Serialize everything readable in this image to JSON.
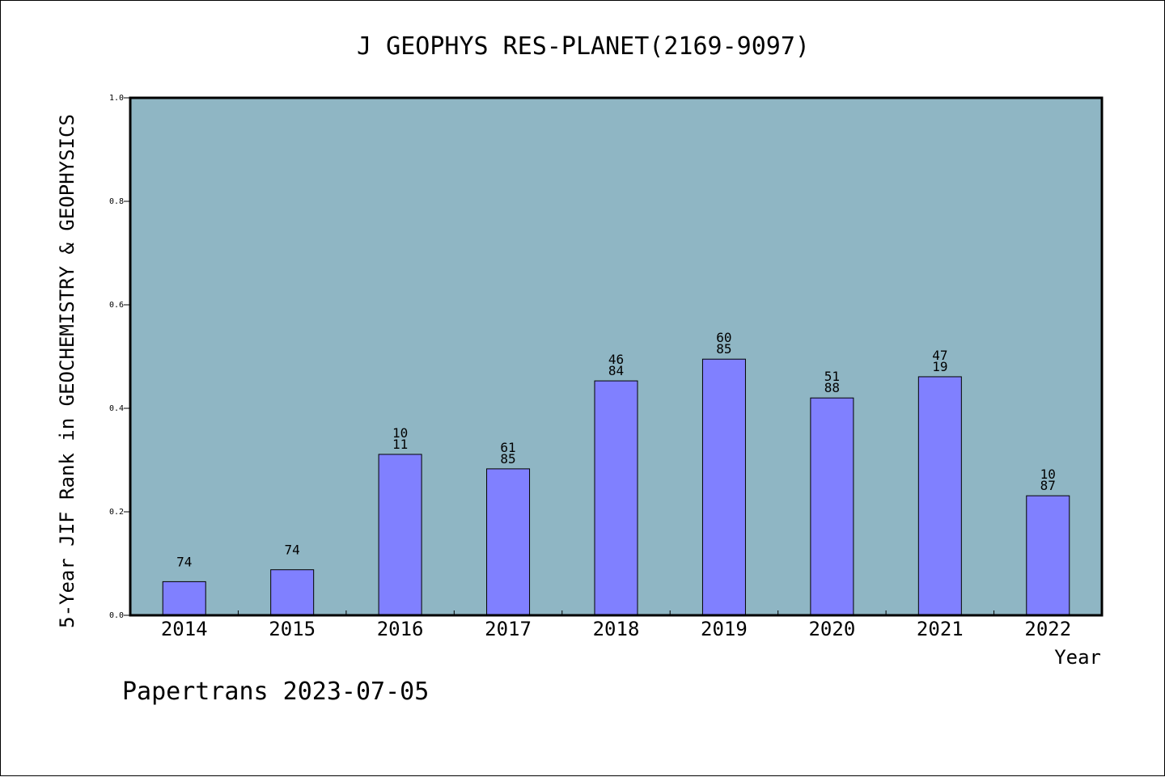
{
  "chart_data": {
    "type": "bar",
    "title": "J GEOPHYS RES-PLANET(2169-9097)",
    "xlabel": "Year",
    "ylabel": "5-Year JIF Rank in GEOCHEMISTRY & GEOPHYSICS",
    "categories": [
      "2014",
      "2015",
      "2016",
      "2017",
      "2018",
      "2019",
      "2020",
      "2021",
      "2022"
    ],
    "values": [
      0.065,
      0.088,
      0.311,
      0.283,
      0.453,
      0.495,
      0.42,
      0.461,
      0.231
    ],
    "data_labels": [
      [
        "74"
      ],
      [
        "74"
      ],
      [
        "10",
        "11"
      ],
      [
        "61",
        "85"
      ],
      [
        "46",
        "84"
      ],
      [
        "60",
        "85"
      ],
      [
        "51",
        "88"
      ],
      [
        "47",
        "19"
      ],
      [
        "10",
        "87"
      ]
    ],
    "ylim": [
      0,
      1.0
    ],
    "yticks": [
      "0.0",
      "0.2",
      "0.4",
      "0.6",
      "0.8",
      "1.0"
    ],
    "grid": false,
    "colors": {
      "plot_background": "#8fb6c4",
      "bar_fill": "#8080ff",
      "bar_stroke": "#000000"
    }
  },
  "footer": "Papertrans 2023-07-05"
}
